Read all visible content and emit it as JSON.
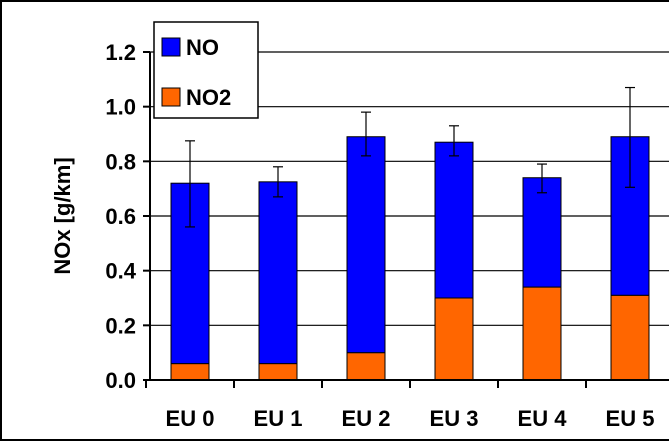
{
  "chart_data": {
    "type": "bar",
    "stacked": true,
    "categories": [
      "EU 0",
      "EU 1",
      "EU 2",
      "EU 3",
      "EU 4",
      "EU 5"
    ],
    "series": [
      {
        "name": "NO2",
        "color": "#ff6600",
        "values": [
          0.06,
          0.06,
          0.1,
          0.3,
          0.34,
          0.31
        ]
      },
      {
        "name": "NO",
        "color": "#0000ff",
        "values": [
          0.66,
          0.665,
          0.79,
          0.57,
          0.4,
          0.58
        ]
      }
    ],
    "totals": [
      0.72,
      0.725,
      0.89,
      0.87,
      0.74,
      0.89
    ],
    "error_bars": {
      "upper": [
        0.875,
        0.78,
        0.98,
        0.93,
        0.79,
        1.07
      ],
      "lower": [
        0.56,
        0.67,
        0.82,
        0.82,
        0.685,
        0.705
      ]
    },
    "ylabel": "NOx [g/km]",
    "xlabel": "",
    "ylim": [
      0.0,
      1.2
    ],
    "yticks": [
      "0.0",
      "0.2",
      "0.4",
      "0.6",
      "0.8",
      "1.0",
      "1.2"
    ],
    "grid": true,
    "legend_position": "top-left",
    "legend_order": [
      "NO",
      "NO2"
    ]
  }
}
